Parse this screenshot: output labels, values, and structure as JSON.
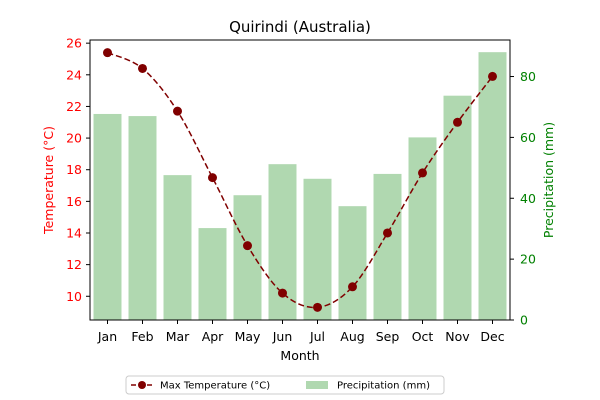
{
  "chart_data": {
    "type": "bar+line",
    "title": "Quirindi (Australia)",
    "xlabel": "Month",
    "categories": [
      "Jan",
      "Feb",
      "Mar",
      "Apr",
      "May",
      "Jun",
      "Jul",
      "Aug",
      "Sep",
      "Oct",
      "Nov",
      "Dec"
    ],
    "y_left": {
      "label": "Temperature (°C)",
      "color": "#ff0000",
      "ylim": [
        8.5,
        26.2
      ],
      "ticks": [
        10,
        12,
        14,
        16,
        18,
        20,
        22,
        24,
        26
      ]
    },
    "y_right": {
      "label": "Precipitation (mm)",
      "color": "#008000",
      "ylim": [
        0,
        92
      ],
      "ticks": [
        0,
        20,
        40,
        60,
        80
      ]
    },
    "series": [
      {
        "name": "Max Temperature (°C)",
        "type": "line",
        "axis": "left",
        "color": "#800000",
        "line_style": "dashed",
        "marker": "circle",
        "values": [
          25.4,
          24.4,
          21.7,
          17.5,
          13.2,
          10.2,
          9.3,
          10.6,
          14.0,
          17.8,
          21.0,
          23.9
        ]
      },
      {
        "name": "Precipitation (mm)",
        "type": "bar",
        "axis": "right",
        "color": "#b0d8b0",
        "values": [
          67.7,
          67.0,
          47.6,
          30.2,
          41.0,
          51.2,
          46.4,
          37.4,
          48.0,
          60.0,
          73.7,
          88.0
        ]
      }
    ],
    "legend_position": "bottom-center",
    "grid": false
  }
}
